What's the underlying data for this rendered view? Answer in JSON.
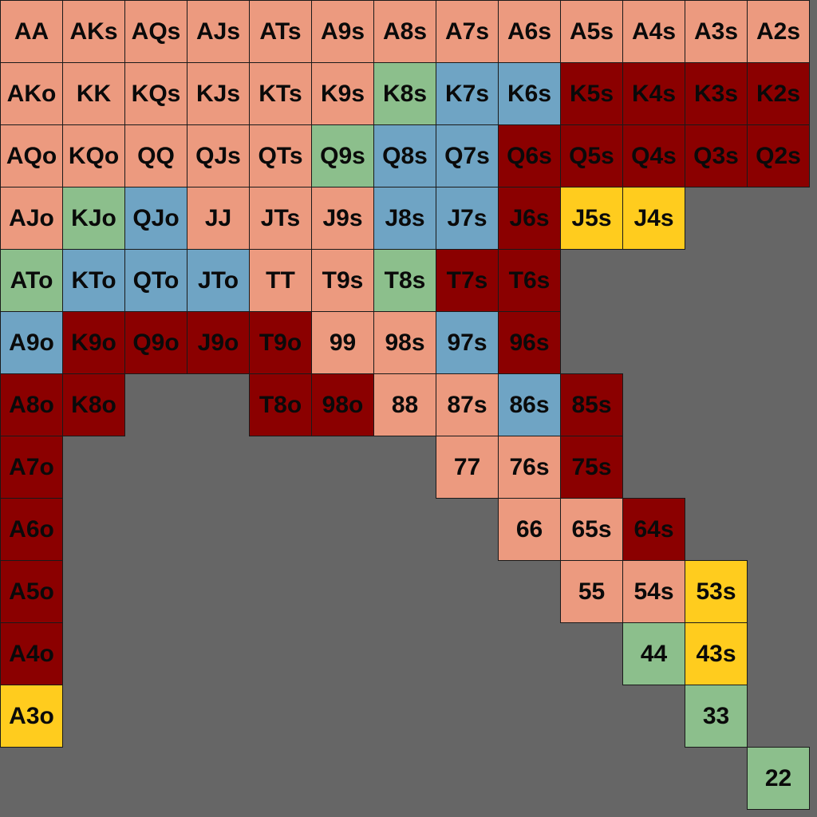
{
  "chart_data": {
    "type": "heatmap",
    "title": "",
    "ranks": [
      "A",
      "K",
      "Q",
      "J",
      "T",
      "9",
      "8",
      "7",
      "6",
      "5",
      "4",
      "3",
      "2"
    ],
    "palette": {
      "S": "#EC9A7F",
      "G": "#8CBF8C",
      "B": "#6FA4C4",
      "R": "#8B0000",
      "Y": "#FFCC1E"
    },
    "rows": [
      {
        "hands": [
          "AA",
          "AKs",
          "AQs",
          "AJs",
          "ATs",
          "A9s",
          "A8s",
          "A7s",
          "A6s",
          "A5s",
          "A4s",
          "A3s",
          "A2s"
        ],
        "groups": [
          "S",
          "S",
          "S",
          "S",
          "S",
          "S",
          "S",
          "S",
          "S",
          "S",
          "S",
          "S",
          "S"
        ]
      },
      {
        "hands": [
          "AKo",
          "KK",
          "KQs",
          "KJs",
          "KTs",
          "K9s",
          "K8s",
          "K7s",
          "K6s",
          "K5s",
          "K4s",
          "K3s",
          "K2s"
        ],
        "groups": [
          "S",
          "S",
          "S",
          "S",
          "S",
          "S",
          "G",
          "B",
          "B",
          "R",
          "R",
          "R",
          "R"
        ]
      },
      {
        "hands": [
          "AQo",
          "KQo",
          "QQ",
          "QJs",
          "QTs",
          "Q9s",
          "Q8s",
          "Q7s",
          "Q6s",
          "Q5s",
          "Q4s",
          "Q3s",
          "Q2s"
        ],
        "groups": [
          "S",
          "S",
          "S",
          "S",
          "S",
          "G",
          "B",
          "B",
          "R",
          "R",
          "R",
          "R",
          "R"
        ]
      },
      {
        "hands": [
          "AJo",
          "KJo",
          "QJo",
          "JJ",
          "JTs",
          "J9s",
          "J8s",
          "J7s",
          "J6s",
          "J5s",
          "J4s",
          "",
          ""
        ],
        "groups": [
          "S",
          "G",
          "B",
          "S",
          "S",
          "S",
          "B",
          "B",
          "R",
          "Y",
          "Y",
          "",
          ""
        ]
      },
      {
        "hands": [
          "ATo",
          "KTo",
          "QTo",
          "JTo",
          "TT",
          "T9s",
          "T8s",
          "T7s",
          "T6s",
          "",
          "",
          "",
          ""
        ],
        "groups": [
          "G",
          "B",
          "B",
          "B",
          "S",
          "S",
          "G",
          "R",
          "R",
          "",
          "",
          "",
          ""
        ]
      },
      {
        "hands": [
          "A9o",
          "K9o",
          "Q9o",
          "J9o",
          "T9o",
          "99",
          "98s",
          "97s",
          "96s",
          "",
          "",
          "",
          ""
        ],
        "groups": [
          "B",
          "R",
          "R",
          "R",
          "R",
          "S",
          "S",
          "B",
          "R",
          "",
          "",
          "",
          ""
        ]
      },
      {
        "hands": [
          "A8o",
          "K8o",
          "",
          "",
          "T8o",
          "98o",
          "88",
          "87s",
          "86s",
          "85s",
          "",
          "",
          ""
        ],
        "groups": [
          "R",
          "R",
          "",
          "",
          "R",
          "R",
          "S",
          "S",
          "B",
          "R",
          "",
          "",
          ""
        ]
      },
      {
        "hands": [
          "A7o",
          "",
          "",
          "",
          "",
          "",
          "",
          "77",
          "76s",
          "75s",
          "",
          "",
          ""
        ],
        "groups": [
          "R",
          "",
          "",
          "",
          "",
          "",
          "",
          "S",
          "S",
          "R",
          "",
          "",
          ""
        ]
      },
      {
        "hands": [
          "A6o",
          "",
          "",
          "",
          "",
          "",
          "",
          "",
          "66",
          "65s",
          "64s",
          "",
          ""
        ],
        "groups": [
          "R",
          "",
          "",
          "",
          "",
          "",
          "",
          "",
          "S",
          "S",
          "R",
          "",
          ""
        ]
      },
      {
        "hands": [
          "A5o",
          "",
          "",
          "",
          "",
          "",
          "",
          "",
          "",
          "55",
          "54s",
          "53s",
          ""
        ],
        "groups": [
          "R",
          "",
          "",
          "",
          "",
          "",
          "",
          "",
          "",
          "S",
          "S",
          "Y",
          ""
        ]
      },
      {
        "hands": [
          "A4o",
          "",
          "",
          "",
          "",
          "",
          "",
          "",
          "",
          "",
          "44",
          "43s",
          ""
        ],
        "groups": [
          "R",
          "",
          "",
          "",
          "",
          "",
          "",
          "",
          "",
          "",
          "G",
          "Y",
          ""
        ]
      },
      {
        "hands": [
          "A3o",
          "",
          "",
          "",
          "",
          "",
          "",
          "",
          "",
          "",
          "",
          "33",
          ""
        ],
        "groups": [
          "Y",
          "",
          "",
          "",
          "",
          "",
          "",
          "",
          "",
          "",
          "",
          "G",
          ""
        ]
      },
      {
        "hands": [
          "",
          "",
          "",
          "",
          "",
          "",
          "",
          "",
          "",
          "",
          "",
          "",
          "22"
        ],
        "groups": [
          "",
          "",
          "",
          "",
          "",
          "",
          "",
          "",
          "",
          "",
          "",
          "",
          "G"
        ]
      }
    ]
  }
}
